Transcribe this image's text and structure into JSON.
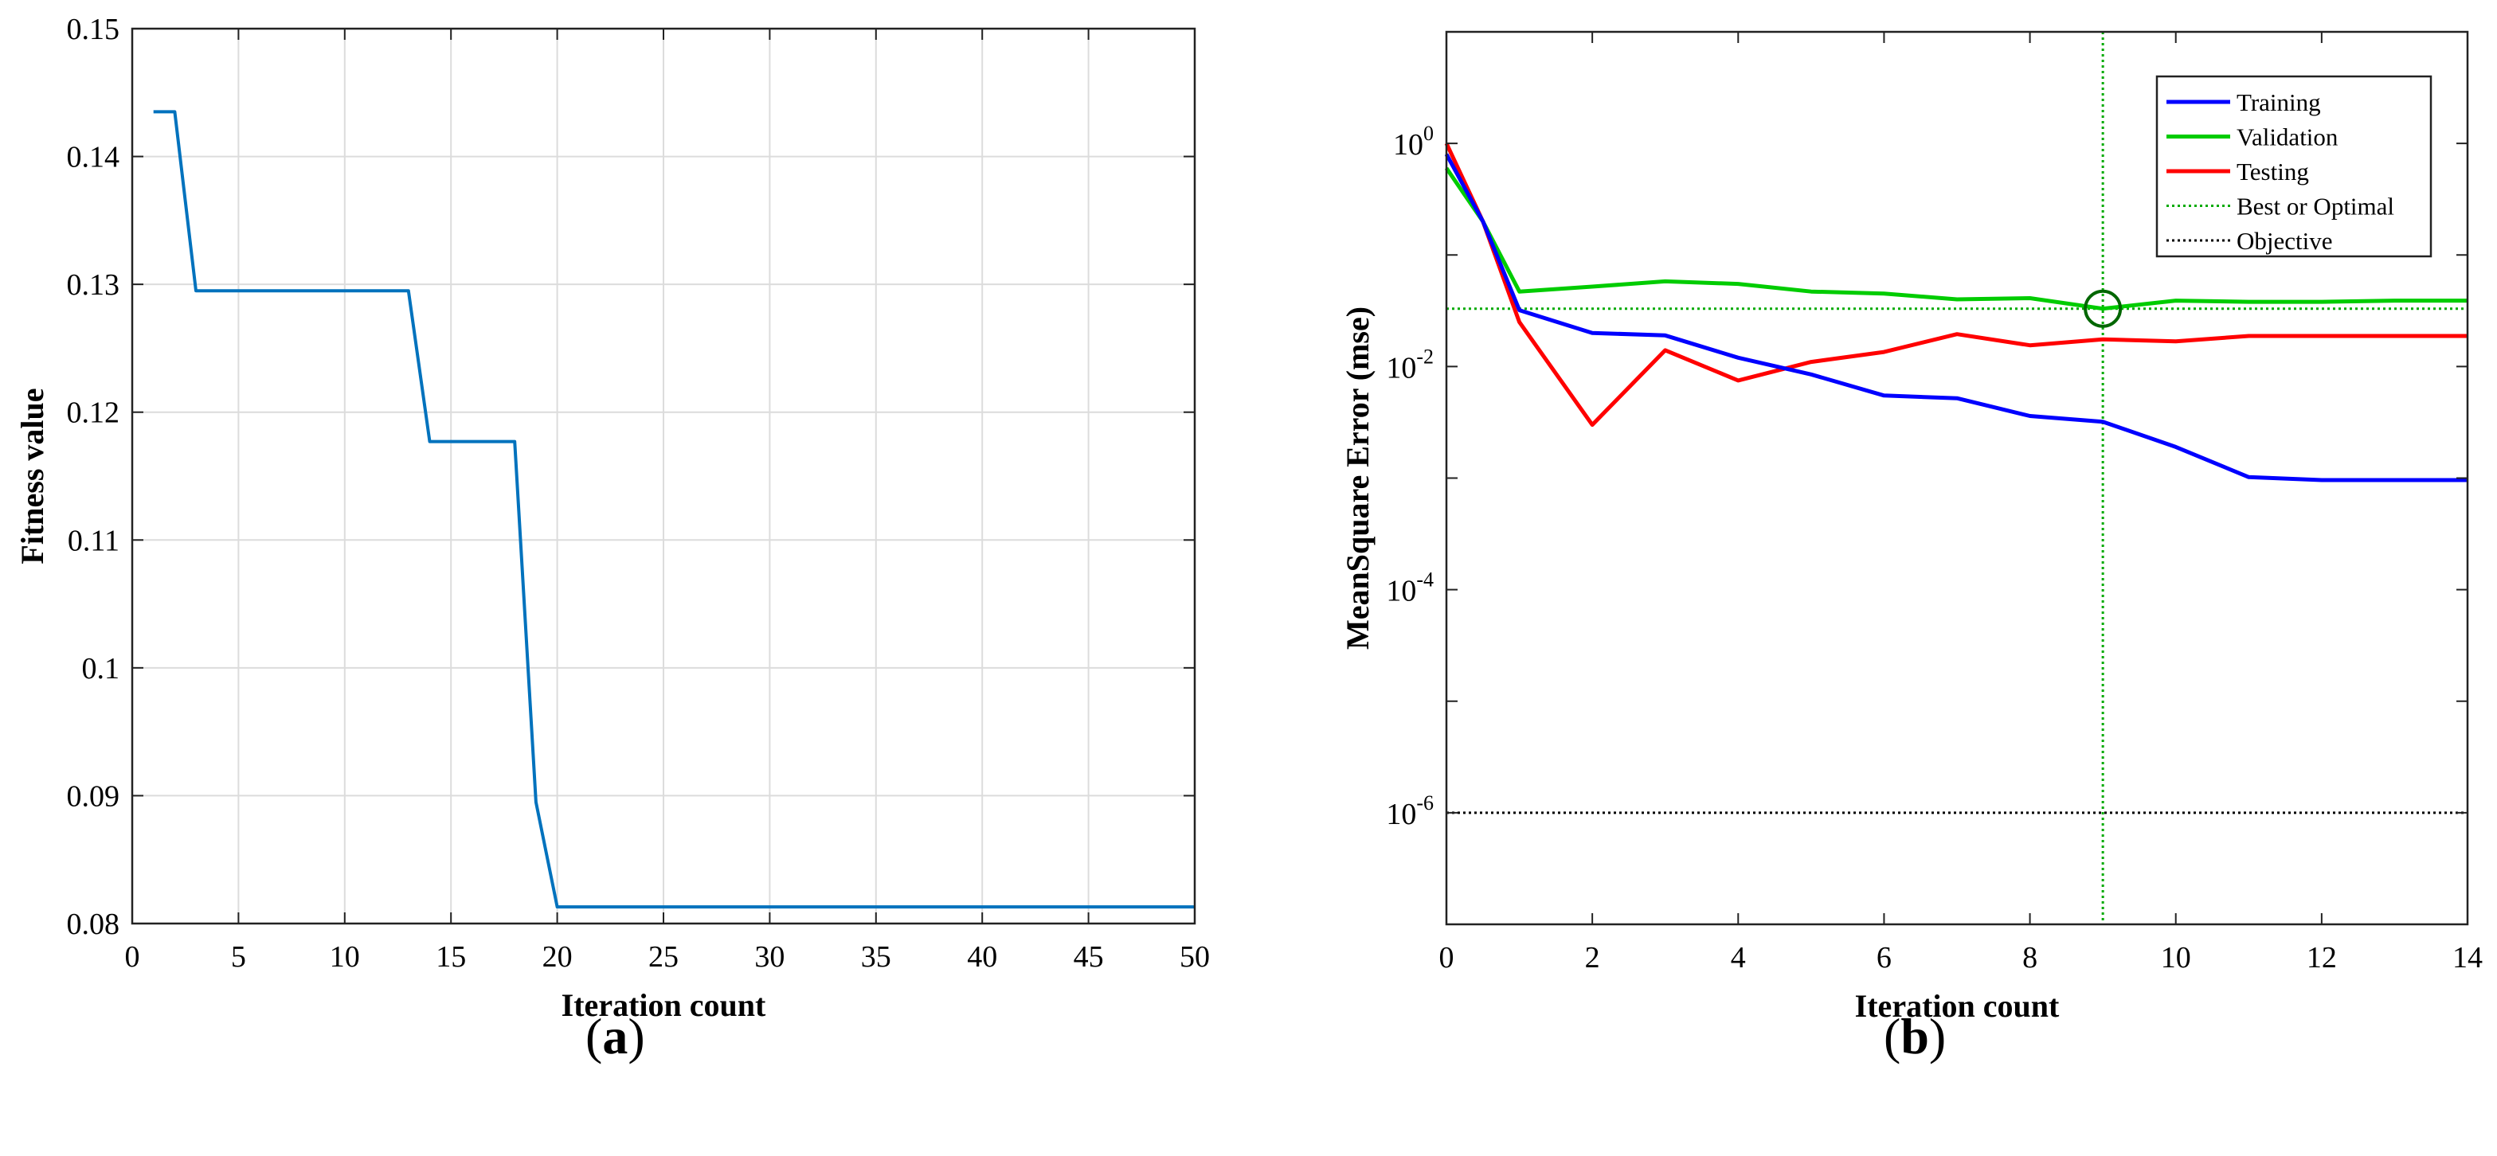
{
  "panels": [
    {
      "caption_open": "(",
      "caption_letter": "a",
      "caption_close": ")"
    },
    {
      "caption_open": "(",
      "caption_letter": "b",
      "caption_close": ")"
    }
  ],
  "chart_data": [
    {
      "type": "line",
      "xlabel": "Iteration  count",
      "ylabel": "Fitness value",
      "xlim": [
        0,
        50
      ],
      "ylim": [
        0.08,
        0.15
      ],
      "xticks": [
        0,
        5,
        10,
        15,
        20,
        25,
        30,
        35,
        40,
        45,
        50
      ],
      "xtick_labels": [
        "0",
        "5",
        "10",
        "15",
        "20",
        "25",
        "30",
        "35",
        "40",
        "45",
        "50"
      ],
      "yticks": [
        0.08,
        0.09,
        0.1,
        0.11,
        0.12,
        0.13,
        0.14,
        0.15
      ],
      "ytick_labels": [
        "0.08",
        "0.09",
        "0.1",
        "0.11",
        "0.12",
        "0.13",
        "0.14",
        "0.15"
      ],
      "grid": true,
      "series": [
        {
          "color": "#0072BD",
          "x": [
            1,
            2,
            3,
            4,
            5,
            6,
            7,
            8,
            9,
            10,
            11,
            12,
            13,
            14,
            15,
            16,
            17,
            18,
            19,
            20,
            21,
            22,
            23,
            24,
            25,
            26,
            27,
            28,
            29,
            30,
            31,
            32,
            33,
            34,
            35,
            36,
            37,
            38,
            39,
            40,
            41,
            42,
            43,
            44,
            45,
            46,
            47,
            48,
            49,
            50
          ],
          "y": [
            0.1435,
            0.1435,
            0.1295,
            0.1295,
            0.1295,
            0.1295,
            0.1295,
            0.1295,
            0.1295,
            0.1295,
            0.1295,
            0.1295,
            0.1295,
            0.1177,
            0.1177,
            0.1177,
            0.1177,
            0.1177,
            0.0895,
            0.0813,
            0.0813,
            0.0813,
            0.0813,
            0.0813,
            0.0813,
            0.0813,
            0.0813,
            0.0813,
            0.0813,
            0.0813,
            0.0813,
            0.0813,
            0.0813,
            0.0813,
            0.0813,
            0.0813,
            0.0813,
            0.0813,
            0.0813,
            0.0813,
            0.0813,
            0.0813,
            0.0813,
            0.0813,
            0.0813,
            0.0813,
            0.0813,
            0.0813,
            0.0813,
            0.0813
          ]
        }
      ]
    },
    {
      "type": "line",
      "xlabel": "Iteration count",
      "ylabel": "MeanSquare Error (mse)",
      "xlim": [
        0,
        14
      ],
      "ylim": [
        1e-07,
        10
      ],
      "yscale": "log",
      "xticks": [
        0,
        2,
        4,
        6,
        8,
        10,
        12,
        14
      ],
      "xtick_labels": [
        "0",
        "2",
        "4",
        "6",
        "8",
        "10",
        "12",
        "14"
      ],
      "yticks": [
        1,
        0.01,
        0.0001,
        1e-06
      ],
      "ytick_labels": [
        {
          "base": "10",
          "exp": "0"
        },
        {
          "base": "10",
          "exp": "-2"
        },
        {
          "base": "10",
          "exp": "-4"
        },
        {
          "base": "10",
          "exp": "-6"
        }
      ],
      "grid": false,
      "legend_position": "top-right",
      "legend": [
        "Training",
        "Validation",
        "Testing",
        "Best or Optimal",
        "Objective"
      ],
      "series": [
        {
          "name": "Training",
          "color": "#0000FF",
          "x": [
            0,
            0.5,
            1,
            2,
            3,
            4,
            5,
            6,
            7,
            8,
            9,
            10,
            11,
            12,
            13,
            14
          ],
          "y": [
            0.8,
            0.2,
            0.032,
            0.02,
            0.019,
            0.012,
            0.0085,
            0.0055,
            0.0052,
            0.0036,
            0.0032,
            0.0019,
            0.00102,
            0.00096,
            0.00096,
            0.00096
          ]
        },
        {
          "name": "Validation",
          "color": "#00CC00",
          "x": [
            0,
            0.5,
            1,
            2,
            3,
            4,
            5,
            6,
            7,
            8,
            9,
            10,
            11,
            12,
            13,
            14
          ],
          "y": [
            0.6,
            0.2,
            0.047,
            0.052,
            0.058,
            0.055,
            0.047,
            0.045,
            0.04,
            0.041,
            0.033,
            0.039,
            0.038,
            0.038,
            0.039,
            0.039
          ],
          "best_point": {
            "x": 9,
            "y": 0.033
          }
        },
        {
          "name": "Testing",
          "color": "#FF0000",
          "x": [
            0,
            0.5,
            1,
            2,
            3,
            4,
            5,
            6,
            7,
            8,
            9,
            10,
            11,
            12,
            13,
            14
          ],
          "y": [
            1.0,
            0.2,
            0.025,
            0.003,
            0.014,
            0.0075,
            0.011,
            0.0135,
            0.0195,
            0.0155,
            0.0175,
            0.0168,
            0.0188,
            0.0188,
            0.0188,
            0.0188
          ]
        },
        {
          "name": "Best or Optimal",
          "color": "#00AA00",
          "style": "dotted",
          "x_value": 9,
          "y_value": 0.033
        },
        {
          "name": "Objective",
          "color": "#000000",
          "style": "dotted",
          "y_value": 1e-06
        }
      ]
    }
  ]
}
